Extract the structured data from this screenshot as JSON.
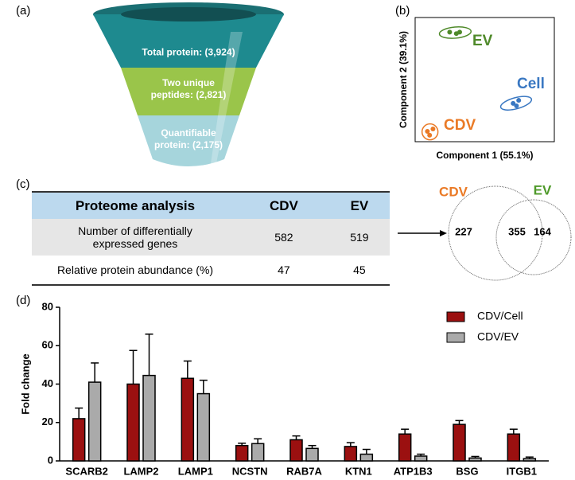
{
  "panel_labels": [
    "(a)",
    "(b)",
    "(c)",
    "(d)"
  ],
  "table": {
    "header": [
      "Proteome analysis",
      "CDV",
      "EV"
    ],
    "rows": [
      [
        "Number of differentially expressed genes",
        582,
        519
      ],
      [
        "Relative protein abundance (%)",
        47,
        45
      ]
    ]
  },
  "chart_data": [
    {
      "type": "funnel",
      "categories": [
        "Total protein:",
        "Two unique peptides:",
        "Quantifiable protein:"
      ],
      "values": [
        3924,
        2821,
        2175
      ],
      "value_labels": [
        "(3,924)",
        "(2,821)",
        "(2,175)"
      ],
      "colors": [
        "#1e8a8f",
        "#9ac54a",
        "#a6d5dc"
      ]
    },
    {
      "type": "scatter",
      "xlabel": "Component 1 (55.1%)",
      "ylabel": "Component 2 (39.1%)",
      "xlim": [
        -45,
        80
      ],
      "ylim": [
        -40,
        45
      ],
      "series": [
        {
          "name": "EV",
          "color": "#4f8a2a",
          "x": [
            -14,
            -8,
            -5
          ],
          "values": [
            35,
            34,
            35
          ]
        },
        {
          "name": "Cell",
          "color": "#3a78c2",
          "x": [
            43,
            48,
            46
          ],
          "values": [
            -13.8,
            -11.7,
            -15.5
          ]
        },
        {
          "name": "CDV",
          "color": "#ea7a26",
          "x": [
            -34,
            -29,
            -32
          ],
          "values": [
            -32.9,
            -31.3,
            -35.6
          ]
        }
      ]
    },
    {
      "type": "venn",
      "sets": [
        {
          "name": "CDV",
          "color": "#ea7a26"
        },
        {
          "name": "EV",
          "color": "#4f9a2a"
        }
      ],
      "values": [
        227,
        355,
        164
      ]
    },
    {
      "type": "bar",
      "ylabel": "Fold change",
      "ylim": [
        0,
        80
      ],
      "yticks": [
        0,
        20,
        40,
        60,
        80
      ],
      "legend": "upper right",
      "categories": [
        "SCARB2",
        "LAMP2",
        "LAMP1",
        "NCSTN",
        "RAB7A",
        "KTN1",
        "ATP1B3",
        "BSG",
        "ITGB1"
      ],
      "series": [
        {
          "name": "CDV/Cell",
          "color": "#9b1010",
          "values": [
            22,
            40,
            43,
            8,
            11,
            7.5,
            14,
            19,
            14
          ],
          "errors": [
            5.5,
            17.5,
            9,
            1.2,
            2,
            2,
            2.5,
            2,
            2.5
          ]
        },
        {
          "name": "CDV/EV",
          "color": "#aaaaaa",
          "values": [
            41,
            44.5,
            35,
            9,
            6.5,
            3.5,
            2.5,
            1.5,
            1.2
          ],
          "errors": [
            10,
            21.5,
            7,
            2.5,
            1.5,
            2.5,
            1,
            0.8,
            0.8
          ]
        }
      ]
    }
  ]
}
